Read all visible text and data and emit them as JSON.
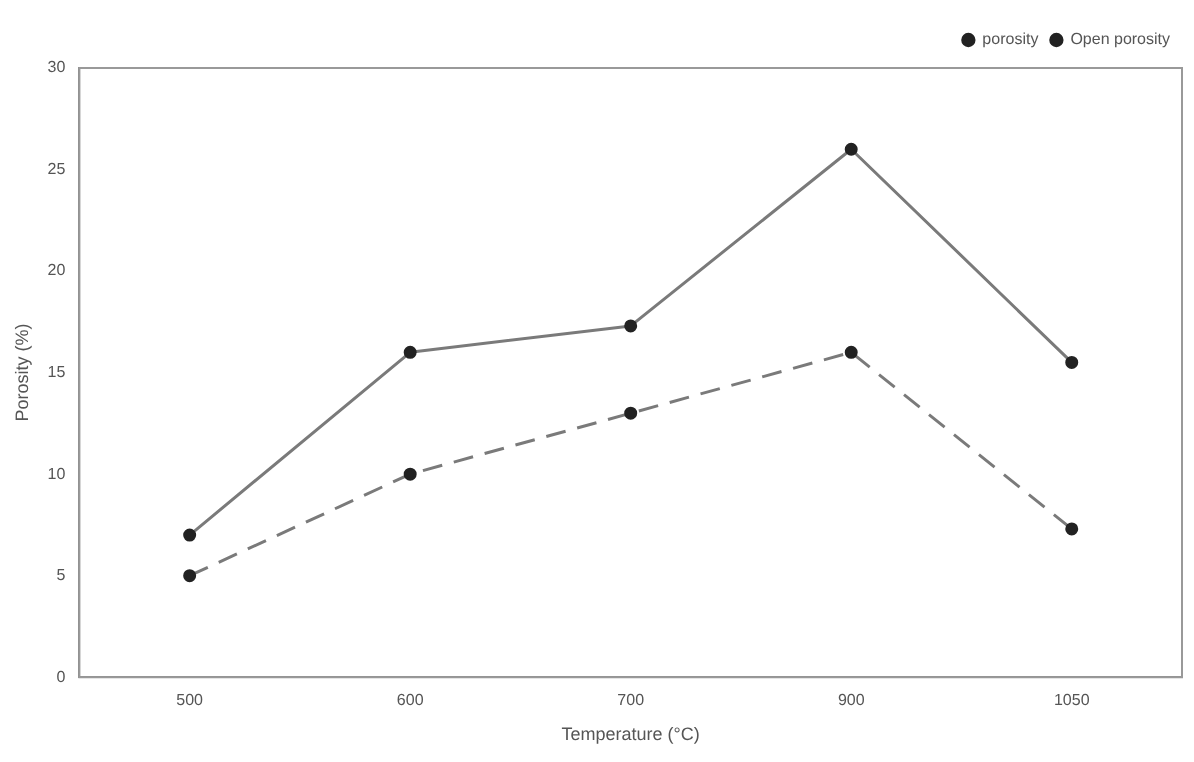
{
  "chart_data": {
    "type": "line",
    "xlabel": "Temperature (°C)",
    "ylabel": "Porosity (%)",
    "categories": [
      "500",
      "600",
      "700",
      "900",
      "1050"
    ],
    "series": [
      {
        "name": "porosity",
        "color": "#7a7a7a",
        "values": [
          7,
          16,
          17.3,
          26,
          15.5
        ],
        "line_style": "solid"
      },
      {
        "name": "Open porosity",
        "color": "#7a7a7a",
        "values": [
          5,
          10,
          13,
          16,
          7.3
        ],
        "line_style": "dashed"
      }
    ],
    "ylim": [
      0,
      30
    ],
    "yticks": [
      0,
      5,
      10,
      15,
      20,
      25,
      30
    ],
    "grid": false,
    "legend": "top right",
    "marker": "circle"
  }
}
